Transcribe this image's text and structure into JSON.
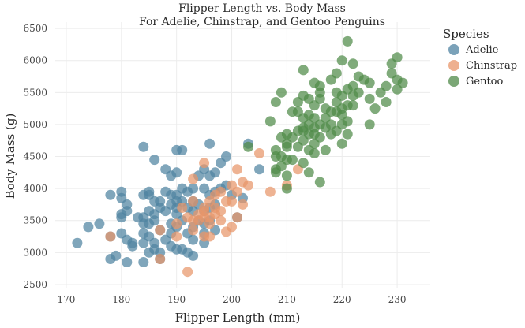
{
  "chart_data": {
    "type": "scatter",
    "title": "Flipper Length vs. Body Mass",
    "subtitle": "For Adelie, Chinstrap, and Gentoo Penguins",
    "xlabel": "Flipper Length (mm)",
    "ylabel": "Body Mass (g)",
    "xlim": [
      168,
      236
    ],
    "ylim": [
      2450,
      6600
    ],
    "x_ticks": [
      170,
      180,
      190,
      200,
      210,
      220,
      230
    ],
    "y_ticks": [
      2500,
      3000,
      3500,
      4000,
      4500,
      5000,
      5500,
      6000,
      6500
    ],
    "grid": true,
    "legend": {
      "title": "Species",
      "position": "right"
    },
    "series": [
      {
        "name": "Adelie",
        "color": "#4f83a1",
        "points": [
          [
            172,
            3150
          ],
          [
            174,
            3400
          ],
          [
            176,
            3450
          ],
          [
            178,
            3900
          ],
          [
            178,
            3250
          ],
          [
            178,
            2900
          ],
          [
            179,
            2950
          ],
          [
            180,
            3950
          ],
          [
            180,
            3850
          ],
          [
            180,
            3600
          ],
          [
            180,
            3550
          ],
          [
            180,
            3300
          ],
          [
            181,
            3750
          ],
          [
            181,
            3650
          ],
          [
            181,
            3200
          ],
          [
            181,
            2850
          ],
          [
            182,
            3150
          ],
          [
            182,
            3100
          ],
          [
            183,
            3550
          ],
          [
            184,
            4650
          ],
          [
            184,
            3900
          ],
          [
            184,
            3550
          ],
          [
            184,
            3450
          ],
          [
            184,
            3300
          ],
          [
            184,
            3150
          ],
          [
            184,
            2850
          ],
          [
            185,
            3950
          ],
          [
            185,
            3900
          ],
          [
            185,
            3650
          ],
          [
            185,
            3450
          ],
          [
            185,
            3250
          ],
          [
            185,
            3000
          ],
          [
            186,
            4450
          ],
          [
            186,
            3800
          ],
          [
            186,
            3600
          ],
          [
            186,
            3500
          ],
          [
            186,
            3150
          ],
          [
            186,
            3050
          ],
          [
            187,
            3800
          ],
          [
            187,
            3700
          ],
          [
            187,
            3350
          ],
          [
            187,
            3000
          ],
          [
            187,
            2900
          ],
          [
            188,
            4300
          ],
          [
            188,
            3950
          ],
          [
            188,
            3650
          ],
          [
            188,
            3200
          ],
          [
            189,
            4200
          ],
          [
            189,
            3900
          ],
          [
            189,
            3750
          ],
          [
            189,
            3450
          ],
          [
            189,
            3300
          ],
          [
            189,
            3100
          ],
          [
            190,
            4600
          ],
          [
            190,
            4250
          ],
          [
            190,
            3900
          ],
          [
            190,
            3800
          ],
          [
            190,
            3700
          ],
          [
            190,
            3600
          ],
          [
            190,
            3400
          ],
          [
            190,
            3050
          ],
          [
            191,
            4600
          ],
          [
            191,
            4000
          ],
          [
            191,
            3800
          ],
          [
            191,
            3500
          ],
          [
            191,
            3050
          ],
          [
            192,
            3950
          ],
          [
            192,
            3700
          ],
          [
            192,
            3300
          ],
          [
            192,
            3000
          ],
          [
            193,
            4000
          ],
          [
            193,
            3800
          ],
          [
            193,
            3650
          ],
          [
            193,
            3400
          ],
          [
            193,
            3200
          ],
          [
            193,
            2950
          ],
          [
            194,
            4200
          ],
          [
            194,
            3750
          ],
          [
            194,
            3500
          ],
          [
            195,
            4300
          ],
          [
            195,
            4000
          ],
          [
            195,
            3650
          ],
          [
            195,
            3450
          ],
          [
            195,
            3300
          ],
          [
            195,
            3150
          ],
          [
            196,
            4700
          ],
          [
            196,
            4200
          ],
          [
            196,
            3900
          ],
          [
            196,
            3700
          ],
          [
            196,
            3500
          ],
          [
            197,
            4250
          ],
          [
            197,
            3950
          ],
          [
            197,
            3750
          ],
          [
            197,
            3350
          ],
          [
            198,
            4400
          ],
          [
            198,
            4000
          ],
          [
            199,
            4500
          ],
          [
            199,
            4050
          ],
          [
            200,
            3900
          ],
          [
            201,
            3550
          ],
          [
            203,
            4700
          ],
          [
            205,
            4300
          ],
          [
            202,
            3850
          ]
        ]
      },
      {
        "name": "Chinstrap",
        "color": "#e8956a",
        "points": [
          [
            178,
            3250
          ],
          [
            187,
            3350
          ],
          [
            187,
            2900
          ],
          [
            190,
            3250
          ],
          [
            190,
            3450
          ],
          [
            191,
            3700
          ],
          [
            192,
            2700
          ],
          [
            192,
            3550
          ],
          [
            193,
            3800
          ],
          [
            193,
            3500
          ],
          [
            193,
            3350
          ],
          [
            194,
            3500
          ],
          [
            194,
            3600
          ],
          [
            195,
            3700
          ],
          [
            195,
            3550
          ],
          [
            195,
            3250
          ],
          [
            195,
            4400
          ],
          [
            196,
            3800
          ],
          [
            196,
            3550
          ],
          [
            196,
            3450
          ],
          [
            196,
            3250
          ],
          [
            197,
            3700
          ],
          [
            197,
            3600
          ],
          [
            197,
            3900
          ],
          [
            198,
            3950
          ],
          [
            198,
            3650
          ],
          [
            198,
            3500
          ],
          [
            199,
            3800
          ],
          [
            199,
            3325
          ],
          [
            200,
            4050
          ],
          [
            200,
            3800
          ],
          [
            200,
            3400
          ],
          [
            201,
            3950
          ],
          [
            201,
            4300
          ],
          [
            201,
            3550
          ],
          [
            202,
            4100
          ],
          [
            202,
            3750
          ],
          [
            203,
            4050
          ],
          [
            205,
            4550
          ],
          [
            207,
            3950
          ],
          [
            210,
            4050
          ],
          [
            212,
            4300
          ],
          [
            193,
            4150
          ],
          [
            195,
            3650
          ]
        ]
      },
      {
        "name": "Gentoo",
        "color": "#4f8a48",
        "points": [
          [
            203,
            4650
          ],
          [
            207,
            5050
          ],
          [
            208,
            5350
          ],
          [
            208,
            4600
          ],
          [
            208,
            4500
          ],
          [
            208,
            4300
          ],
          [
            208,
            4250
          ],
          [
            209,
            5500
          ],
          [
            209,
            4800
          ],
          [
            209,
            4500
          ],
          [
            209,
            4350
          ],
          [
            210,
            4850
          ],
          [
            210,
            4700
          ],
          [
            210,
            4650
          ],
          [
            210,
            4450
          ],
          [
            210,
            4200
          ],
          [
            210,
            4000
          ],
          [
            211,
            4800
          ],
          [
            211,
            4450
          ],
          [
            212,
            5200
          ],
          [
            212,
            4900
          ],
          [
            212,
            4650
          ],
          [
            213,
            5100
          ],
          [
            213,
            4950
          ],
          [
            213,
            4750
          ],
          [
            213,
            4400
          ],
          [
            214,
            5400
          ],
          [
            214,
            5000
          ],
          [
            214,
            4850
          ],
          [
            214,
            4600
          ],
          [
            214,
            4250
          ],
          [
            215,
            5650
          ],
          [
            215,
            5300
          ],
          [
            215,
            5100
          ],
          [
            215,
            4950
          ],
          [
            215,
            4700
          ],
          [
            215,
            4550
          ],
          [
            216,
            5500
          ],
          [
            216,
            5000
          ],
          [
            216,
            4800
          ],
          [
            216,
            4100
          ],
          [
            217,
            5250
          ],
          [
            217,
            4950
          ],
          [
            217,
            4600
          ],
          [
            218,
            5700
          ],
          [
            218,
            5200
          ],
          [
            218,
            4850
          ],
          [
            219,
            5800
          ],
          [
            219,
            5500
          ],
          [
            219,
            5200
          ],
          [
            219,
            4900
          ],
          [
            220,
            6000
          ],
          [
            220,
            5450
          ],
          [
            220,
            5250
          ],
          [
            220,
            5000
          ],
          [
            220,
            4700
          ],
          [
            221,
            6300
          ],
          [
            221,
            5550
          ],
          [
            221,
            5300
          ],
          [
            221,
            5050
          ],
          [
            222,
            5950
          ],
          [
            222,
            5600
          ],
          [
            222,
            5300
          ],
          [
            223,
            5500
          ],
          [
            224,
            5700
          ],
          [
            225,
            5400
          ],
          [
            225,
            5000
          ],
          [
            226,
            5250
          ],
          [
            228,
            5600
          ],
          [
            228,
            5350
          ],
          [
            229,
            5950
          ],
          [
            229,
            5800
          ],
          [
            230,
            6050
          ],
          [
            230,
            5550
          ],
          [
            230,
            5700
          ],
          [
            231,
            5650
          ],
          [
            211,
            5200
          ],
          [
            212,
            5350
          ],
          [
            213,
            5450
          ],
          [
            214,
            5150
          ],
          [
            215,
            4850
          ],
          [
            216,
            5400
          ],
          [
            217,
            5100
          ],
          [
            218,
            5000
          ],
          [
            219,
            5350
          ],
          [
            220,
            5150
          ],
          [
            221,
            4850
          ],
          [
            222,
            5450
          ],
          [
            223,
            5750
          ],
          [
            225,
            5650
          ],
          [
            227,
            5500
          ],
          [
            213,
            5850
          ],
          [
            213,
            4900
          ],
          [
            216,
            5600
          ]
        ]
      }
    ]
  }
}
